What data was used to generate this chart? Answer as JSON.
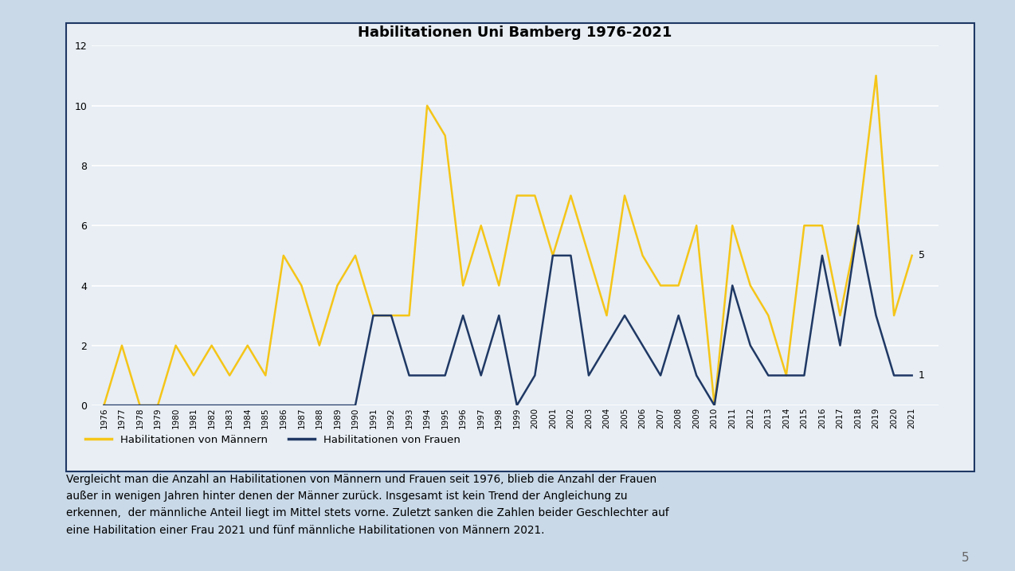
{
  "title": "Habilitationen Uni Bamberg 1976-2021",
  "years": [
    1976,
    1977,
    1978,
    1979,
    1980,
    1981,
    1982,
    1983,
    1984,
    1985,
    1986,
    1987,
    1988,
    1989,
    1990,
    1991,
    1992,
    1993,
    1994,
    1995,
    1996,
    1997,
    1998,
    1999,
    2000,
    2001,
    2002,
    2003,
    2004,
    2005,
    2006,
    2007,
    2008,
    2009,
    2010,
    2011,
    2012,
    2013,
    2014,
    2015,
    2016,
    2017,
    2018,
    2019,
    2020,
    2021
  ],
  "maenner": [
    0,
    2,
    0,
    0,
    2,
    1,
    2,
    1,
    2,
    1,
    5,
    4,
    2,
    4,
    5,
    3,
    3,
    3,
    10,
    9,
    4,
    6,
    4,
    7,
    7,
    5,
    7,
    5,
    3,
    7,
    5,
    4,
    4,
    6,
    0,
    6,
    4,
    3,
    1,
    6,
    6,
    3,
    6,
    11,
    3,
    5
  ],
  "frauen": [
    0,
    0,
    0,
    0,
    0,
    0,
    0,
    0,
    0,
    0,
    0,
    0,
    0,
    0,
    0,
    3,
    3,
    1,
    1,
    1,
    3,
    1,
    3,
    0,
    1,
    5,
    5,
    1,
    2,
    3,
    2,
    1,
    3,
    1,
    0,
    4,
    2,
    1,
    1,
    1,
    5,
    2,
    6,
    3,
    1,
    1
  ],
  "maenner_color": "#F5C518",
  "frauen_color": "#1F3864",
  "outer_bg": "#C9D9E8",
  "chart_bg": "#E8EEF4",
  "box_border": "#1F3864",
  "legend_maenner": "Habilitationen von Männern",
  "legend_frauen": "Habilitationen von Frauen",
  "ylim": [
    0,
    12
  ],
  "yticks": [
    0,
    2,
    4,
    6,
    8,
    10,
    12
  ],
  "annotation_5": "5",
  "annotation_1": "1",
  "caption_line1": "Vergleicht man die Anzahl an Habilitationen von Männern und Frauen seit 1976, blieb die Anzahl der Frauen",
  "caption_line2": "außer in wenigen Jahren hinter denen der Männer zurück. Insgesamt ist kein Trend der Angleichung zu",
  "caption_line3": "erkennen,  der männliche Anteil liegt im Mittel stets vorne. Zuletzt sanken die Zahlen beider Geschlechter auf",
  "caption_line4": "eine Habilitation einer Frau 2021 und fünf männliche Habilitationen von Männern 2021.",
  "page_num": "5"
}
